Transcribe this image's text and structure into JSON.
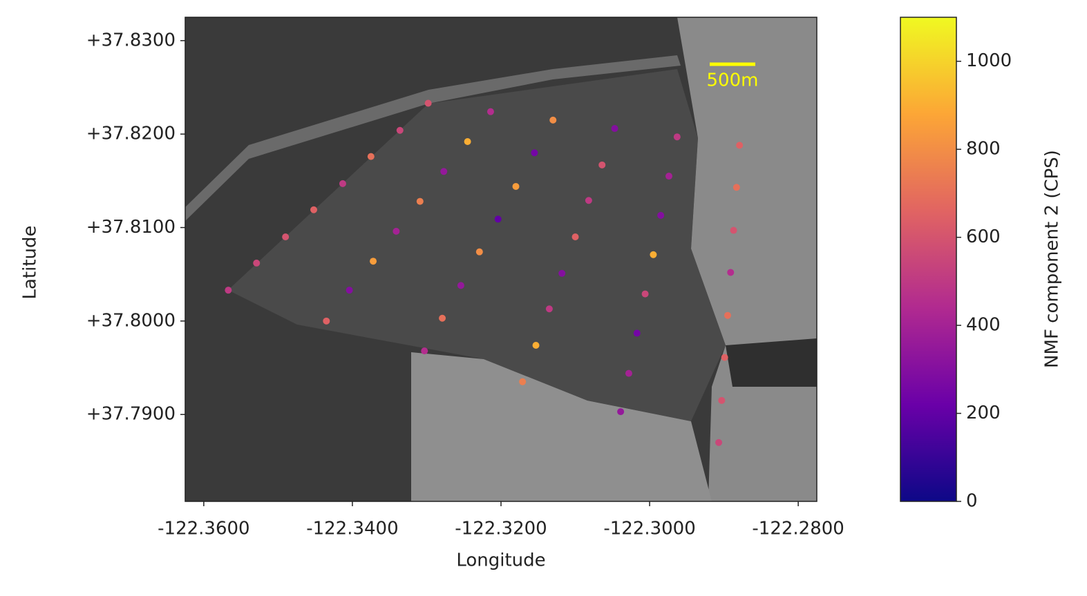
{
  "chart_data": {
    "type": "scatter",
    "xlabel": "Longitude",
    "ylabel": "Latitude",
    "xlim": [
      -122.3625,
      -122.2775
    ],
    "ylim": [
      37.7807,
      37.8325
    ],
    "xticks": [
      {
        "value": -122.36,
        "label": "-122.3600"
      },
      {
        "value": -122.34,
        "label": "-122.3400"
      },
      {
        "value": -122.32,
        "label": "-122.3200"
      },
      {
        "value": -122.3,
        "label": "-122.3000"
      },
      {
        "value": -122.28,
        "label": "-122.2800"
      }
    ],
    "yticks": [
      {
        "value": 37.79,
        "label": "+37.7900"
      },
      {
        "value": 37.8,
        "label": "+37.8000"
      },
      {
        "value": 37.81,
        "label": "+37.8100"
      },
      {
        "value": 37.82,
        "label": "+37.8200"
      },
      {
        "value": 37.83,
        "label": "+37.8300"
      }
    ],
    "annotation": "500m",
    "annotation_color": "#ffff00",
    "colorbar": {
      "label": "NMF component 2 (CPS)",
      "clim": [
        0,
        1100
      ],
      "ticks": [
        0,
        200,
        400,
        600,
        800,
        1000
      ],
      "colormap": [
        "#0d0887",
        "#6a00a8",
        "#b12a90",
        "#e16462",
        "#fca636",
        "#f0f921"
      ]
    },
    "x": [
      -122.3298,
      -122.3214,
      -122.313,
      -122.3047,
      -122.2963,
      -122.2879,
      -122.3336,
      -122.3245,
      -122.3155,
      -122.3064,
      -122.2974,
      -122.2883,
      -122.3375,
      -122.3277,
      -122.318,
      -122.3082,
      -122.2985,
      -122.2887,
      -122.3413,
      -122.3309,
      -122.3204,
      -122.31,
      -122.2995,
      -122.2891,
      -122.3452,
      -122.3341,
      -122.3229,
      -122.3118,
      -122.3006,
      -122.2895,
      -122.349,
      -122.3372,
      -122.3254,
      -122.3135,
      -122.3017,
      -122.2899,
      -122.3529,
      -122.3404,
      -122.3279,
      -122.3153,
      -122.3028,
      -122.2903,
      -122.3567,
      -122.3435,
      -122.3303,
      -122.3171,
      -122.3039,
      -122.2907
    ],
    "y": [
      37.8233,
      37.8224,
      37.8215,
      37.8206,
      37.8197,
      37.8188,
      37.8204,
      37.8192,
      37.818,
      37.8167,
      37.8155,
      37.8143,
      37.8176,
      37.816,
      37.8144,
      37.8129,
      37.8113,
      37.8097,
      37.8147,
      37.8128,
      37.8109,
      37.809,
      37.8071,
      37.8052,
      37.8119,
      37.8096,
      37.8074,
      37.8051,
      37.8029,
      37.8006,
      37.809,
      37.8064,
      37.8038,
      37.8013,
      37.7987,
      37.7961,
      37.8062,
      37.8033,
      37.8003,
      37.7974,
      37.7944,
      37.7915,
      37.8033,
      37.8,
      37.7968,
      37.7935,
      37.7903,
      37.787
    ],
    "c": [
      600,
      450,
      800,
      300,
      500,
      650,
      550,
      900,
      250,
      600,
      400,
      700,
      700,
      350,
      850,
      500,
      300,
      600,
      500,
      750,
      200,
      650,
      900,
      450,
      650,
      400,
      800,
      300,
      550,
      700,
      600,
      850,
      350,
      500,
      250,
      650,
      550,
      300,
      700,
      900,
      400,
      600,
      500,
      650,
      450,
      750,
      350,
      550
    ]
  }
}
